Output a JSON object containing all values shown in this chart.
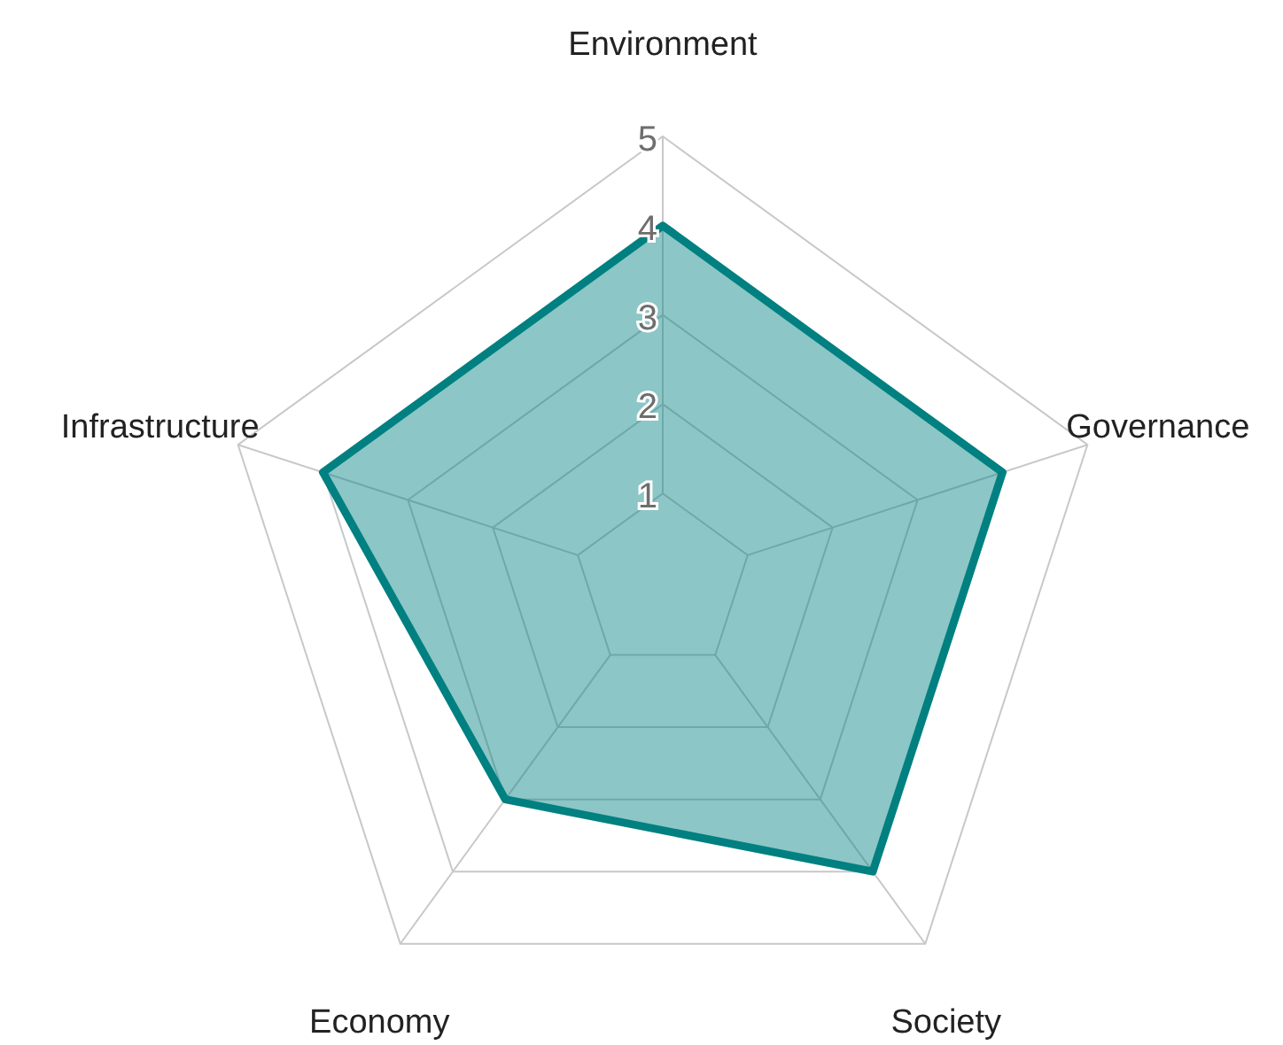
{
  "chart_data": {
    "type": "radar",
    "categories": [
      "Environment",
      "Governance",
      "Society",
      "Economy",
      "Infrastructure"
    ],
    "series": [
      {
        "color": "#008080",
        "values": [
          4,
          4,
          4,
          3,
          4
        ]
      }
    ],
    "ylim": [
      0,
      5
    ],
    "yticks": [
      1,
      2,
      3,
      4,
      5
    ],
    "grid": true
  }
}
